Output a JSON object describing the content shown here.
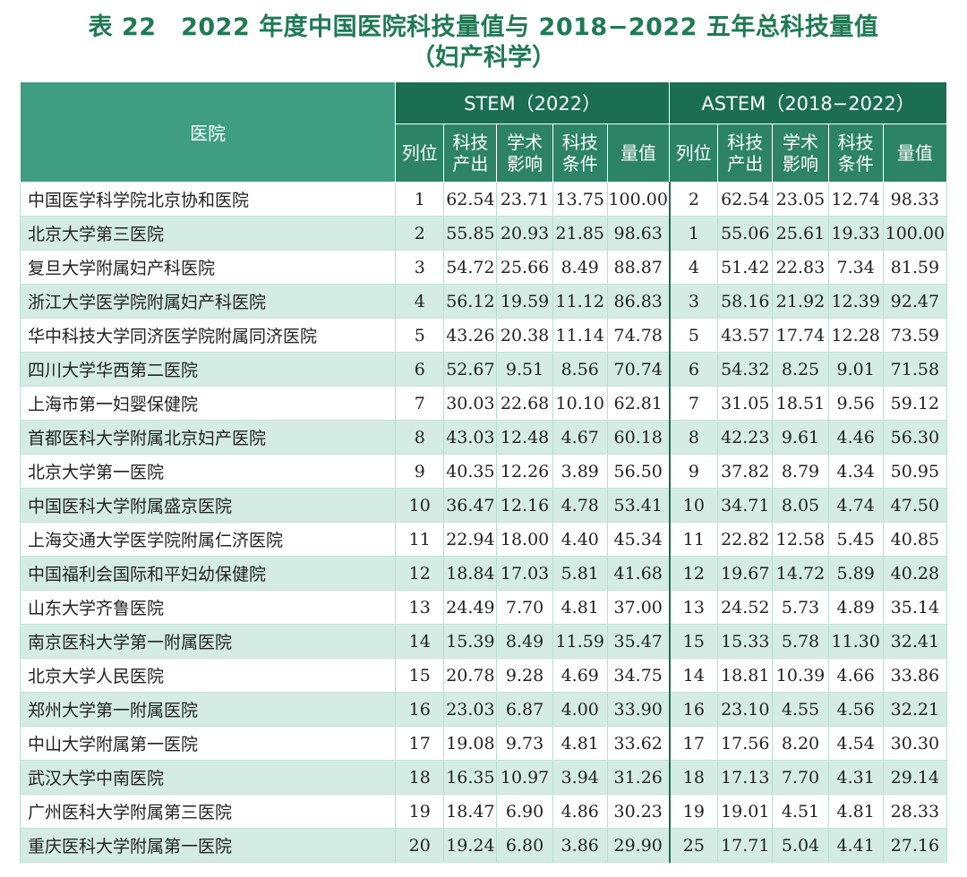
{
  "title": {
    "line1": "表 22　2022 年度中国医院科技量值与 2018−2022 五年总科技量值",
    "line2": "（妇产科学）"
  },
  "table": {
    "hospital_header": "医院",
    "group_stem": "STEM（2022）",
    "group_astem": "ASTEM（2018−2022）",
    "sub_headers": [
      "列位",
      "科技\n产出",
      "学术\n影响",
      "科技\n条件",
      "量值"
    ],
    "rows": [
      {
        "name": "中国医学科学院北京协和医院",
        "stem": [
          "1",
          "62.54",
          "23.71",
          "13.75",
          "100.00"
        ],
        "astem": [
          "2",
          "62.54",
          "23.05",
          "12.74",
          "98.33"
        ]
      },
      {
        "name": "北京大学第三医院",
        "stem": [
          "2",
          "55.85",
          "20.93",
          "21.85",
          "98.63"
        ],
        "astem": [
          "1",
          "55.06",
          "25.61",
          "19.33",
          "100.00"
        ]
      },
      {
        "name": "复旦大学附属妇产科医院",
        "stem": [
          "3",
          "54.72",
          "25.66",
          "8.49",
          "88.87"
        ],
        "astem": [
          "4",
          "51.42",
          "22.83",
          "7.34",
          "81.59"
        ]
      },
      {
        "name": "浙江大学医学院附属妇产科医院",
        "stem": [
          "4",
          "56.12",
          "19.59",
          "11.12",
          "86.83"
        ],
        "astem": [
          "3",
          "58.16",
          "21.92",
          "12.39",
          "92.47"
        ]
      },
      {
        "name": "华中科技大学同济医学院附属同济医院",
        "stem": [
          "5",
          "43.26",
          "20.38",
          "11.14",
          "74.78"
        ],
        "astem": [
          "5",
          "43.57",
          "17.74",
          "12.28",
          "73.59"
        ]
      },
      {
        "name": "四川大学华西第二医院",
        "stem": [
          "6",
          "52.67",
          "9.51",
          "8.56",
          "70.74"
        ],
        "astem": [
          "6",
          "54.32",
          "8.25",
          "9.01",
          "71.58"
        ]
      },
      {
        "name": "上海市第一妇婴保健院",
        "stem": [
          "7",
          "30.03",
          "22.68",
          "10.10",
          "62.81"
        ],
        "astem": [
          "7",
          "31.05",
          "18.51",
          "9.56",
          "59.12"
        ]
      },
      {
        "name": "首都医科大学附属北京妇产医院",
        "stem": [
          "8",
          "43.03",
          "12.48",
          "4.67",
          "60.18"
        ],
        "astem": [
          "8",
          "42.23",
          "9.61",
          "4.46",
          "56.30"
        ]
      },
      {
        "name": "北京大学第一医院",
        "stem": [
          "9",
          "40.35",
          "12.26",
          "3.89",
          "56.50"
        ],
        "astem": [
          "9",
          "37.82",
          "8.79",
          "4.34",
          "50.95"
        ]
      },
      {
        "name": "中国医科大学附属盛京医院",
        "stem": [
          "10",
          "36.47",
          "12.16",
          "4.78",
          "53.41"
        ],
        "astem": [
          "10",
          "34.71",
          "8.05",
          "4.74",
          "47.50"
        ]
      },
      {
        "name": "上海交通大学医学院附属仁济医院",
        "stem": [
          "11",
          "22.94",
          "18.00",
          "4.40",
          "45.34"
        ],
        "astem": [
          "11",
          "22.82",
          "12.58",
          "5.45",
          "40.85"
        ]
      },
      {
        "name": "中国福利会国际和平妇幼保健院",
        "stem": [
          "12",
          "18.84",
          "17.03",
          "5.81",
          "41.68"
        ],
        "astem": [
          "12",
          "19.67",
          "14.72",
          "5.89",
          "40.28"
        ]
      },
      {
        "name": "山东大学齐鲁医院",
        "stem": [
          "13",
          "24.49",
          "7.70",
          "4.81",
          "37.00"
        ],
        "astem": [
          "13",
          "24.52",
          "5.73",
          "4.89",
          "35.14"
        ]
      },
      {
        "name": "南京医科大学第一附属医院",
        "stem": [
          "14",
          "15.39",
          "8.49",
          "11.59",
          "35.47"
        ],
        "astem": [
          "15",
          "15.33",
          "5.78",
          "11.30",
          "32.41"
        ]
      },
      {
        "name": "北京大学人民医院",
        "stem": [
          "15",
          "20.78",
          "9.28",
          "4.69",
          "34.75"
        ],
        "astem": [
          "14",
          "18.81",
          "10.39",
          "4.66",
          "33.86"
        ]
      },
      {
        "name": "郑州大学第一附属医院",
        "stem": [
          "16",
          "23.03",
          "6.87",
          "4.00",
          "33.90"
        ],
        "astem": [
          "16",
          "23.10",
          "4.55",
          "4.56",
          "32.21"
        ]
      },
      {
        "name": "中山大学附属第一医院",
        "stem": [
          "17",
          "19.08",
          "9.73",
          "4.81",
          "33.62"
        ],
        "astem": [
          "17",
          "17.56",
          "8.20",
          "4.54",
          "30.30"
        ]
      },
      {
        "name": "武汉大学中南医院",
        "stem": [
          "18",
          "16.35",
          "10.97",
          "3.94",
          "31.26"
        ],
        "astem": [
          "18",
          "17.13",
          "7.70",
          "4.31",
          "29.14"
        ]
      },
      {
        "name": "广州医科大学附属第三医院",
        "stem": [
          "19",
          "18.47",
          "6.90",
          "4.86",
          "30.23"
        ],
        "astem": [
          "19",
          "19.01",
          "4.51",
          "4.81",
          "28.33"
        ]
      },
      {
        "name": "重庆医科大学附属第一医院",
        "stem": [
          "20",
          "19.24",
          "6.80",
          "3.86",
          "29.90"
        ],
        "astem": [
          "25",
          "17.71",
          "5.04",
          "4.41",
          "27.16"
        ]
      }
    ]
  }
}
